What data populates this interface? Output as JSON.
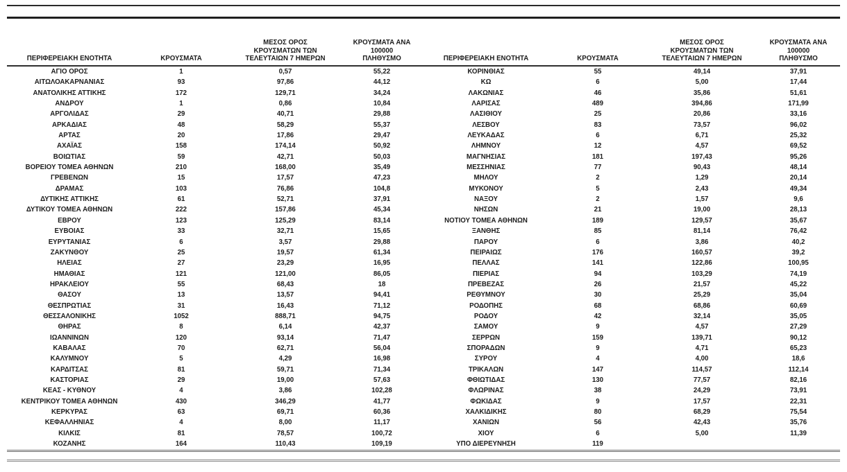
{
  "table": {
    "headers": {
      "region": "ΠΕΡΙΦΕΡΕΙΑΚΗ ΕΝΟΤΗΤΑ",
      "cases": "ΚΡΟΥΣΜΑΤΑ",
      "avg7": [
        "ΜΕΣΟΣ ΟΡΟΣ",
        "ΚΡΟΥΣΜΑΤΩΝ ΤΩΝ",
        "ΤΕΛΕΥΤΑΙΩΝ 7 ΗΜΕΡΩΝ"
      ],
      "per100k": [
        "ΚΡΟΥΣΜΑΤΑ ΑΝΑ 100000",
        "ΠΛΗΘΥΣΜΟ"
      ]
    },
    "left_rows": [
      [
        "ΑΓΙΟ ΟΡΟΣ",
        "1",
        "0,57",
        "55,22"
      ],
      [
        "ΑΙΤΩΛΟΑΚΑΡΝΑΝΙΑΣ",
        "93",
        "97,86",
        "44,12"
      ],
      [
        "ΑΝΑΤΟΛΙΚΗΣ ΑΤΤΙΚΗΣ",
        "172",
        "129,71",
        "34,24"
      ],
      [
        "ΑΝΔΡΟΥ",
        "1",
        "0,86",
        "10,84"
      ],
      [
        "ΑΡΓΟΛΙΔΑΣ",
        "29",
        "40,71",
        "29,88"
      ],
      [
        "ΑΡΚΑΔΙΑΣ",
        "48",
        "58,29",
        "55,37"
      ],
      [
        "ΑΡΤΑΣ",
        "20",
        "17,86",
        "29,47"
      ],
      [
        "ΑΧΑΪΑΣ",
        "158",
        "174,14",
        "50,92"
      ],
      [
        "ΒΟΙΩΤΙΑΣ",
        "59",
        "42,71",
        "50,03"
      ],
      [
        "ΒΟΡΕΙΟΥ ΤΟΜΕΑ ΑΘΗΝΩΝ",
        "210",
        "168,00",
        "35,49"
      ],
      [
        "ΓΡΕΒΕΝΩΝ",
        "15",
        "17,57",
        "47,23"
      ],
      [
        "ΔΡΑΜΑΣ",
        "103",
        "76,86",
        "104,8"
      ],
      [
        "ΔΥΤΙΚΗΣ ΑΤΤΙΚΗΣ",
        "61",
        "52,71",
        "37,91"
      ],
      [
        "ΔΥΤΙΚΟΥ ΤΟΜΕΑ ΑΘΗΝΩΝ",
        "222",
        "157,86",
        "45,34"
      ],
      [
        "ΕΒΡΟΥ",
        "123",
        "125,29",
        "83,14"
      ],
      [
        "ΕΥΒΟΙΑΣ",
        "33",
        "32,71",
        "15,65"
      ],
      [
        "ΕΥΡΥΤΑΝΙΑΣ",
        "6",
        "3,57",
        "29,88"
      ],
      [
        "ΖΑΚΥΝΘΟΥ",
        "25",
        "19,57",
        "61,34"
      ],
      [
        "ΗΛΕΙΑΣ",
        "27",
        "23,29",
        "16,95"
      ],
      [
        "ΗΜΑΘΙΑΣ",
        "121",
        "121,00",
        "86,05"
      ],
      [
        "ΗΡΑΚΛΕΙΟΥ",
        "55",
        "68,43",
        "18"
      ],
      [
        "ΘΑΣΟΥ",
        "13",
        "13,57",
        "94,41"
      ],
      [
        "ΘΕΣΠΡΩΤΙΑΣ",
        "31",
        "16,43",
        "71,12"
      ],
      [
        "ΘΕΣΣΑΛΟΝΙΚΗΣ",
        "1052",
        "888,71",
        "94,75"
      ],
      [
        "ΘΗΡΑΣ",
        "8",
        "6,14",
        "42,37"
      ],
      [
        "ΙΩΑΝΝΙΝΩΝ",
        "120",
        "93,14",
        "71,47"
      ],
      [
        "ΚΑΒΑΛΑΣ",
        "70",
        "62,71",
        "56,04"
      ],
      [
        "ΚΑΛΥΜΝΟΥ",
        "5",
        "4,29",
        "16,98"
      ],
      [
        "ΚΑΡΔΙΤΣΑΣ",
        "81",
        "59,71",
        "71,34"
      ],
      [
        "ΚΑΣΤΟΡΙΑΣ",
        "29",
        "19,00",
        "57,63"
      ],
      [
        "ΚΕΑΣ - ΚΥΘΝΟΥ",
        "4",
        "3,86",
        "102,28"
      ],
      [
        "ΚΕΝΤΡΙΚΟΥ ΤΟΜΕΑ ΑΘΗΝΩΝ",
        "430",
        "346,29",
        "41,77"
      ],
      [
        "ΚΕΡΚΥΡΑΣ",
        "63",
        "69,71",
        "60,36"
      ],
      [
        "ΚΕΦΑΛΛΗΝΙΑΣ",
        "4",
        "8,00",
        "11,17"
      ],
      [
        "ΚΙΛΚΙΣ",
        "81",
        "78,57",
        "100,72"
      ],
      [
        "ΚΟΖΑΝΗΣ",
        "164",
        "110,43",
        "109,19"
      ]
    ],
    "right_rows": [
      [
        "ΚΟΡΙΝΘΙΑΣ",
        "55",
        "49,14",
        "37,91"
      ],
      [
        "ΚΩ",
        "6",
        "5,00",
        "17,44"
      ],
      [
        "ΛΑΚΩΝΙΑΣ",
        "46",
        "35,86",
        "51,61"
      ],
      [
        "ΛΑΡΙΣΑΣ",
        "489",
        "394,86",
        "171,99"
      ],
      [
        "ΛΑΣΙΘΙΟΥ",
        "25",
        "20,86",
        "33,16"
      ],
      [
        "ΛΕΣΒΟΥ",
        "83",
        "73,57",
        "96,02"
      ],
      [
        "ΛΕΥΚΑΔΑΣ",
        "6",
        "6,71",
        "25,32"
      ],
      [
        "ΛΗΜΝΟΥ",
        "12",
        "4,57",
        "69,52"
      ],
      [
        "ΜΑΓΝΗΣΙΑΣ",
        "181",
        "197,43",
        "95,26"
      ],
      [
        "ΜΕΣΣΗΝΙΑΣ",
        "77",
        "90,43",
        "48,14"
      ],
      [
        "ΜΗΛΟΥ",
        "2",
        "1,29",
        "20,14"
      ],
      [
        "ΜΥΚΟΝΟΥ",
        "5",
        "2,43",
        "49,34"
      ],
      [
        "ΝΑΞΟΥ",
        "2",
        "1,57",
        "9,6"
      ],
      [
        "ΝΗΣΩΝ",
        "21",
        "19,00",
        "28,13"
      ],
      [
        "ΝΟΤΙΟΥ ΤΟΜΕΑ ΑΘΗΝΩΝ",
        "189",
        "129,57",
        "35,67"
      ],
      [
        "ΞΑΝΘΗΣ",
        "85",
        "81,14",
        "76,42"
      ],
      [
        "ΠΑΡΟΥ",
        "6",
        "3,86",
        "40,2"
      ],
      [
        "ΠΕΙΡΑΙΩΣ",
        "176",
        "160,57",
        "39,2"
      ],
      [
        "ΠΕΛΛΑΣ",
        "141",
        "122,86",
        "100,95"
      ],
      [
        "ΠΙΕΡΙΑΣ",
        "94",
        "103,29",
        "74,19"
      ],
      [
        "ΠΡΕΒΕΖΑΣ",
        "26",
        "21,57",
        "45,22"
      ],
      [
        "ΡΕΘΥΜΝΟΥ",
        "30",
        "25,29",
        "35,04"
      ],
      [
        "ΡΟΔΟΠΗΣ",
        "68",
        "68,86",
        "60,69"
      ],
      [
        "ΡΟΔΟΥ",
        "42",
        "32,14",
        "35,05"
      ],
      [
        "ΣΑΜΟΥ",
        "9",
        "4,57",
        "27,29"
      ],
      [
        "ΣΕΡΡΩΝ",
        "159",
        "139,71",
        "90,12"
      ],
      [
        "ΣΠΟΡΑΔΩΝ",
        "9",
        "4,71",
        "65,23"
      ],
      [
        "ΣΥΡΟΥ",
        "4",
        "4,00",
        "18,6"
      ],
      [
        "ΤΡΙΚΑΛΩΝ",
        "147",
        "114,57",
        "112,14"
      ],
      [
        "ΦΘΙΩΤΙΔΑΣ",
        "130",
        "77,57",
        "82,16"
      ],
      [
        "ΦΛΩΡΙΝΑΣ",
        "38",
        "24,29",
        "73,91"
      ],
      [
        "ΦΩΚΙΔΑΣ",
        "9",
        "17,57",
        "22,31"
      ],
      [
        "ΧΑΛΚΙΔΙΚΗΣ",
        "80",
        "68,29",
        "75,54"
      ],
      [
        "ΧΑΝΙΩΝ",
        "56",
        "42,43",
        "35,76"
      ],
      [
        "ΧΙΟΥ",
        "6",
        "5,00",
        "11,39"
      ],
      [
        "ΥΠΟ ΔΙΕΡΕΥΝΗΣΗ",
        "119",
        "",
        ""
      ]
    ]
  }
}
